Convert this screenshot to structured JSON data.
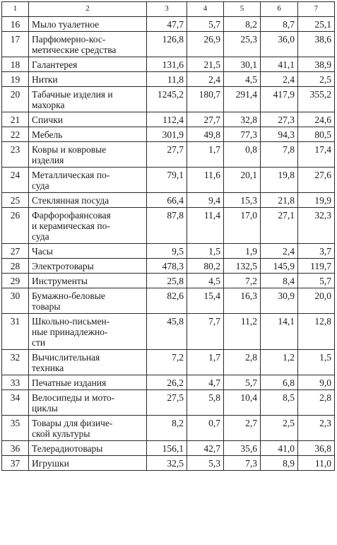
{
  "headers": [
    "1",
    "2",
    "3",
    "4",
    "5",
    "6",
    "7"
  ],
  "rows": [
    {
      "n": "16",
      "name": "Мыло туалетное",
      "c3": "47,7",
      "c4": "5,7",
      "c5": "8,2",
      "c6": "8,7",
      "c7": "25,1"
    },
    {
      "n": "17",
      "name": "Парфюмерно-кос-\nметические средства",
      "c3": "126,8",
      "c4": "26,9",
      "c5": "25,3",
      "c6": "36,0",
      "c7": "38,6"
    },
    {
      "n": "18",
      "name": "Галантерея",
      "c3": "131,6",
      "c4": "21,5",
      "c5": "30,1",
      "c6": "41,1",
      "c7": "38,9"
    },
    {
      "n": "19",
      "name": "Нитки",
      "c3": "11,8",
      "c4": "2,4",
      "c5": "4,5",
      "c6": "2,4",
      "c7": "2,5"
    },
    {
      "n": "20",
      "name": "Табачные изделия и\nмахорка",
      "c3": "1245,2",
      "c4": "180,7",
      "c5": "291,4",
      "c6": "417,9",
      "c7": "355,2"
    },
    {
      "n": "21",
      "name": "Спички",
      "c3": "112,4",
      "c4": "27,7",
      "c5": "32,8",
      "c6": "27,3",
      "c7": "24,6"
    },
    {
      "n": "22",
      "name": "Мебель",
      "c3": "301,9",
      "c4": "49,8",
      "c5": "77,3",
      "c6": "94,3",
      "c7": "80,5"
    },
    {
      "n": "23",
      "name": "Ковры и ковровые\nизделия",
      "c3": "27,7",
      "c4": "1,7",
      "c5": "0,8",
      "c6": "7,8",
      "c7": "17,4"
    },
    {
      "n": "24",
      "name": "Металлическая по-\nсуда",
      "c3": "79,1",
      "c4": "11,6",
      "c5": "20,1",
      "c6": "19,8",
      "c7": "27,6"
    },
    {
      "n": "25",
      "name": "Стеклянная посуда",
      "c3": "66,4",
      "c4": "9,4",
      "c5": "15,3",
      "c6": "21,8",
      "c7": "19,9"
    },
    {
      "n": "26",
      "name": "Фарфорофаянсовая\nи керамическая по-\nсуда",
      "c3": "87,8",
      "c4": "11,4",
      "c5": "17,0",
      "c6": "27,1",
      "c7": "32,3"
    },
    {
      "n": "27",
      "name": "Часы",
      "c3": "9,5",
      "c4": "1,5",
      "c5": "1,9",
      "c6": "2,4",
      "c7": "3,7"
    },
    {
      "n": "28",
      "name": "Электротовары",
      "c3": "478,3",
      "c4": "80,2",
      "c5": "132,5",
      "c6": "145,9",
      "c7": "119,7"
    },
    {
      "n": "29",
      "name": "Инструменты",
      "c3": "25,8",
      "c4": "4,5",
      "c5": "7,2",
      "c6": "8,4",
      "c7": "5,7"
    },
    {
      "n": "30",
      "name": "Бумажно-беловые\nтовары",
      "c3": "82,6",
      "c4": "15,4",
      "c5": "16,3",
      "c6": "30,9",
      "c7": "20,0"
    },
    {
      "n": "31",
      "name": "Школьно-письмен-\nные принадлежно-\nсти",
      "c3": "45,8",
      "c4": "7,7",
      "c5": "11,2",
      "c6": "14,1",
      "c7": "12,8"
    },
    {
      "n": "32",
      "name": "Вычислительная\nтехника",
      "c3": "7,2",
      "c4": "1,7",
      "c5": "2,8",
      "c6": "1,2",
      "c7": "1,5"
    },
    {
      "n": "33",
      "name": "Печатные издания",
      "c3": "26,2",
      "c4": "4,7",
      "c5": "5,7",
      "c6": "6,8",
      "c7": "9,0"
    },
    {
      "n": "34",
      "name": "Велосипеды и мото-\nциклы",
      "c3": "27,5",
      "c4": "5,8",
      "c5": "10,4",
      "c6": "8,5",
      "c7": "2,8"
    },
    {
      "n": "35",
      "name": "Товары для физиче-\nской культуры",
      "c3": "8,2",
      "c4": "0,7",
      "c5": "2,7",
      "c6": "2,5",
      "c7": "2,3"
    },
    {
      "n": "36",
      "name": "Телерадиотовары",
      "c3": "156,1",
      "c4": "42,7",
      "c5": "35,6",
      "c6": "41,0",
      "c7": "36,8"
    },
    {
      "n": "37",
      "name": "Игрушки",
      "c3": "32,5",
      "c4": "5,3",
      "c5": "7,3",
      "c6": "8,9",
      "c7": "11,0"
    }
  ]
}
